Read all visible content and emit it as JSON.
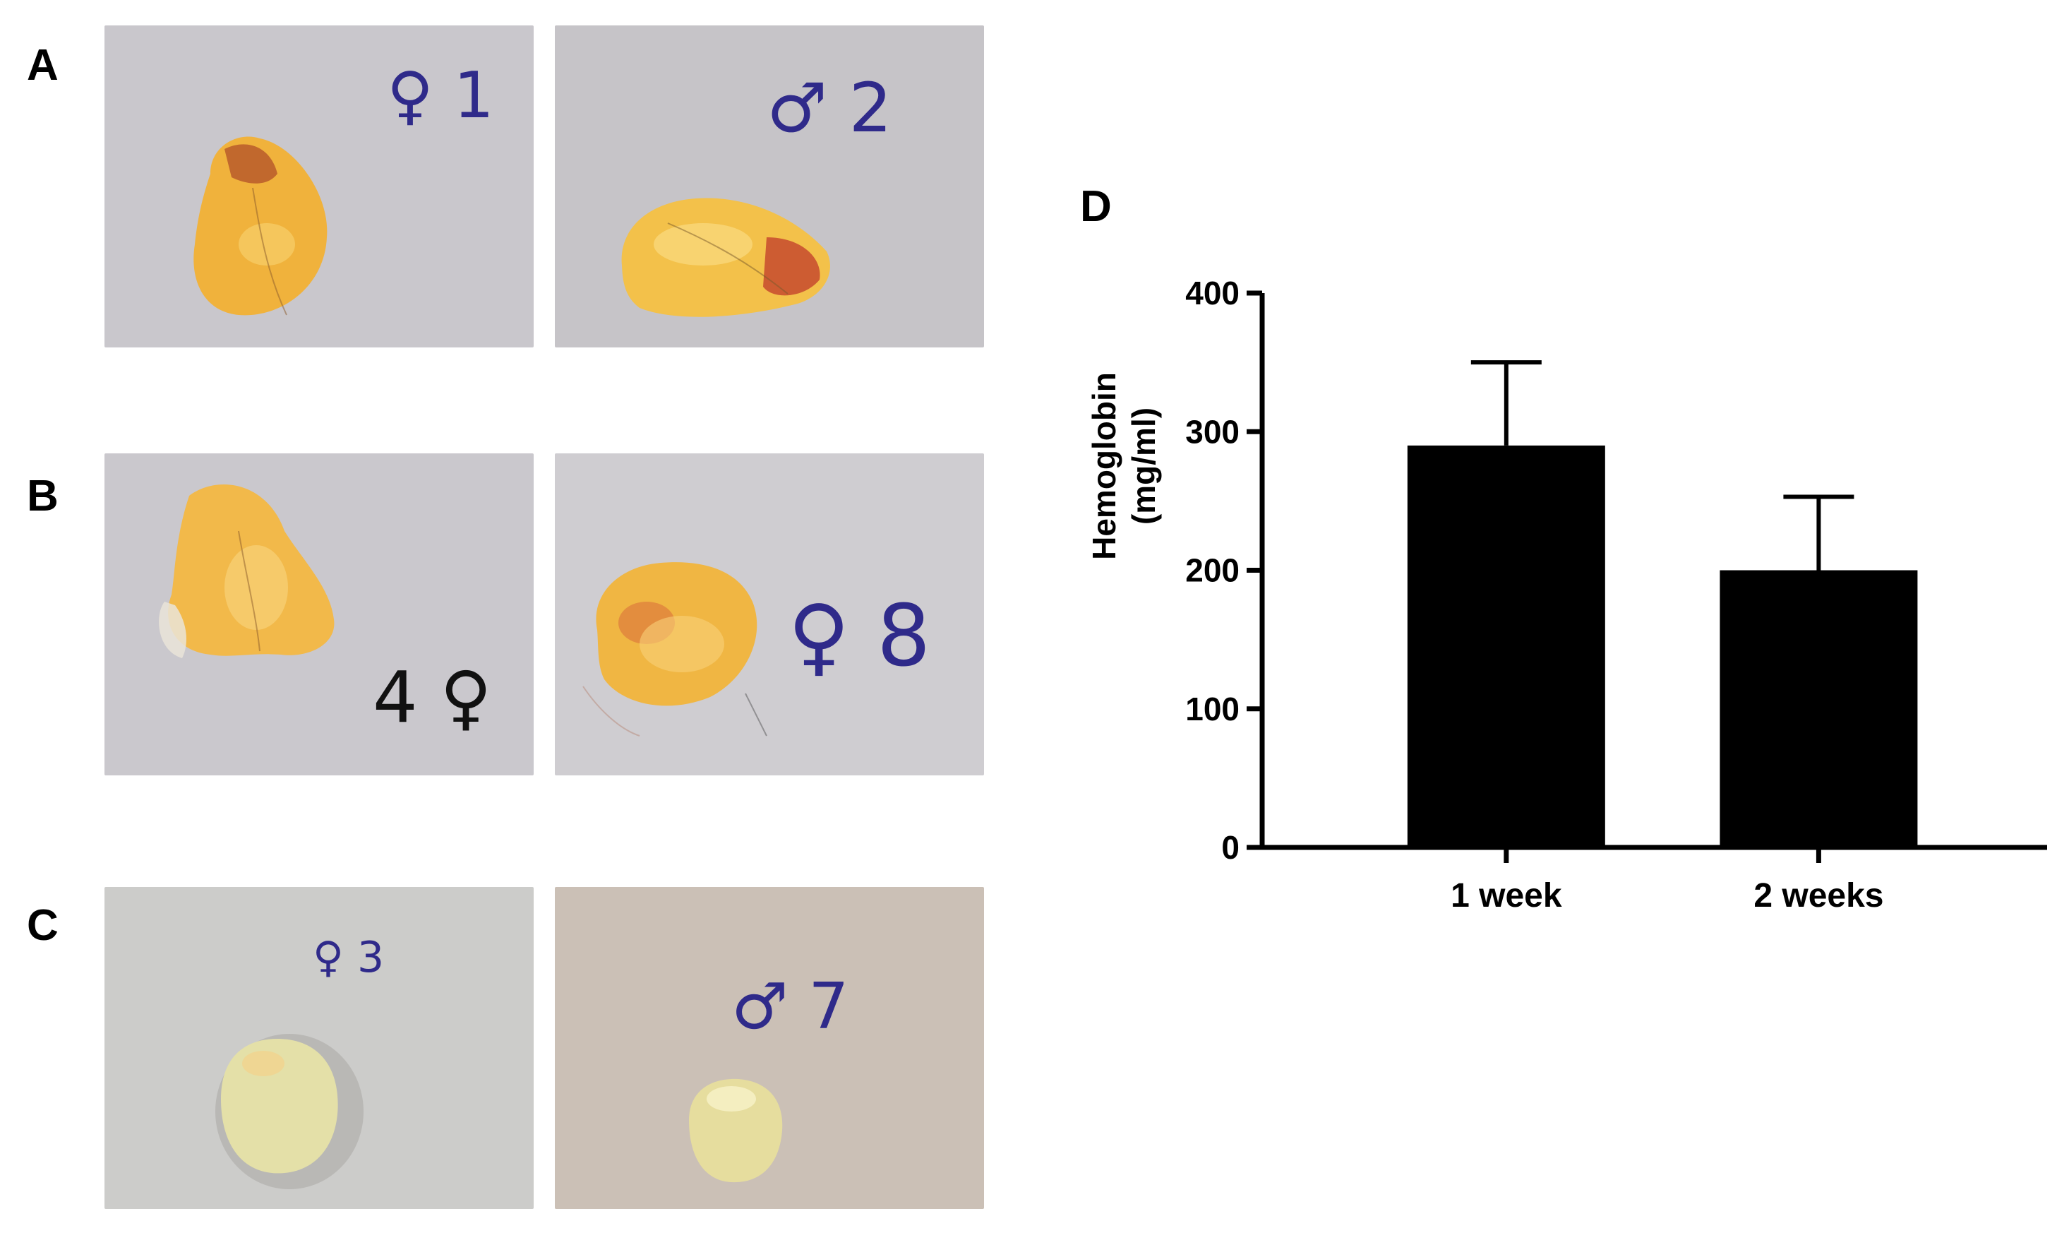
{
  "panels": {
    "a": {
      "letter": "A",
      "left_label": "♀ 1",
      "right_label": "♂ 2"
    },
    "b": {
      "letter": "B",
      "left_label": "4 ♀",
      "right_label": "♀ 8"
    },
    "c": {
      "letter": "C",
      "left_label": "♀ 3",
      "right_label": "♂ 7"
    },
    "d": {
      "letter": "D"
    }
  },
  "colors": {
    "photo_background_gray": "#c9c7cc",
    "photo_background_warm": "#cbc0b6",
    "tissue_orange": "#f0b23c",
    "tissue_red": "#c0392b",
    "tissue_pale": "#e8e2a8",
    "ink_blue": "#2f2a8a",
    "ink_black": "#111111",
    "bar_fill": "#000000"
  },
  "chart_data": {
    "type": "bar",
    "title": "",
    "xlabel": "",
    "ylabel": "Hemoglobin",
    "ylabel_unit": "(mg/ml)",
    "categories": [
      "1 week",
      "2 weeks"
    ],
    "values": [
      290,
      200
    ],
    "errors": [
      60,
      53
    ],
    "ylim": [
      0,
      400
    ],
    "yticks": [
      0,
      100,
      200,
      300,
      400
    ],
    "grid": false,
    "legend": "none"
  }
}
